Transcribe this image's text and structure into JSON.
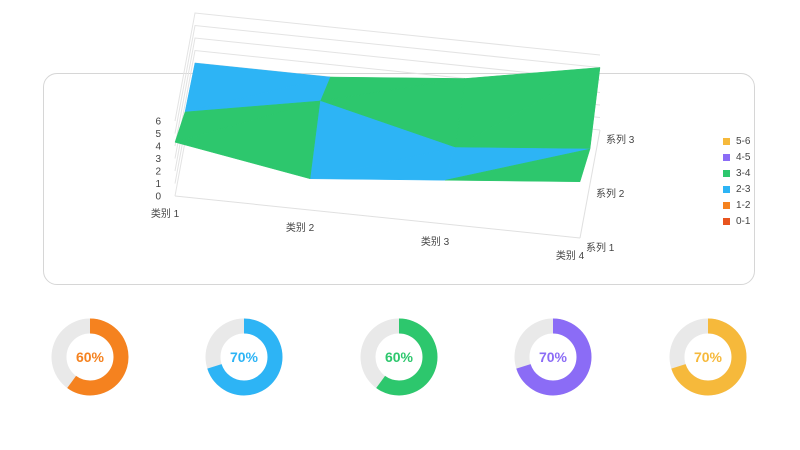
{
  "chart_data": [
    {
      "type": "surface",
      "categories": [
        "类别 1",
        "类别 2",
        "类别 3",
        "类别 4"
      ],
      "series": [
        {
          "name": "系列 1",
          "values": [
            4.3,
            2.5,
            3.5,
            4.5
          ]
        },
        {
          "name": "系列 2",
          "values": [
            2.4,
            4.4,
            1.8,
            2.8
          ]
        },
        {
          "name": "系列 3",
          "values": [
            2.0,
            2.0,
            3.0,
            5.0
          ]
        }
      ],
      "ylim": [
        0,
        6
      ],
      "yticks": [
        "0",
        "1",
        "2",
        "3",
        "4",
        "5",
        "6"
      ],
      "legend_position": "right",
      "legend": [
        {
          "label": "5-6",
          "color": "#F6B93B"
        },
        {
          "label": "4-5",
          "color": "#8B6CF6"
        },
        {
          "label": "3-4",
          "color": "#2DC76D"
        },
        {
          "label": "2-3",
          "color": "#2DB4F5"
        },
        {
          "label": "1-2",
          "color": "#F5821F"
        },
        {
          "label": "0-1",
          "color": "#E8541E"
        }
      ]
    },
    {
      "type": "pie",
      "label": "60%",
      "values": [
        60,
        40
      ],
      "color": "#F5821F"
    },
    {
      "type": "pie",
      "label": "70%",
      "values": [
        70,
        30
      ],
      "color": "#2DB4F5"
    },
    {
      "type": "pie",
      "label": "60%",
      "values": [
        60,
        40
      ],
      "color": "#2DC76D"
    },
    {
      "type": "pie",
      "label": "70%",
      "values": [
        70,
        30
      ],
      "color": "#8B6CF6"
    },
    {
      "type": "pie",
      "label": "70%",
      "values": [
        70,
        30
      ],
      "color": "#F6B93B"
    }
  ]
}
